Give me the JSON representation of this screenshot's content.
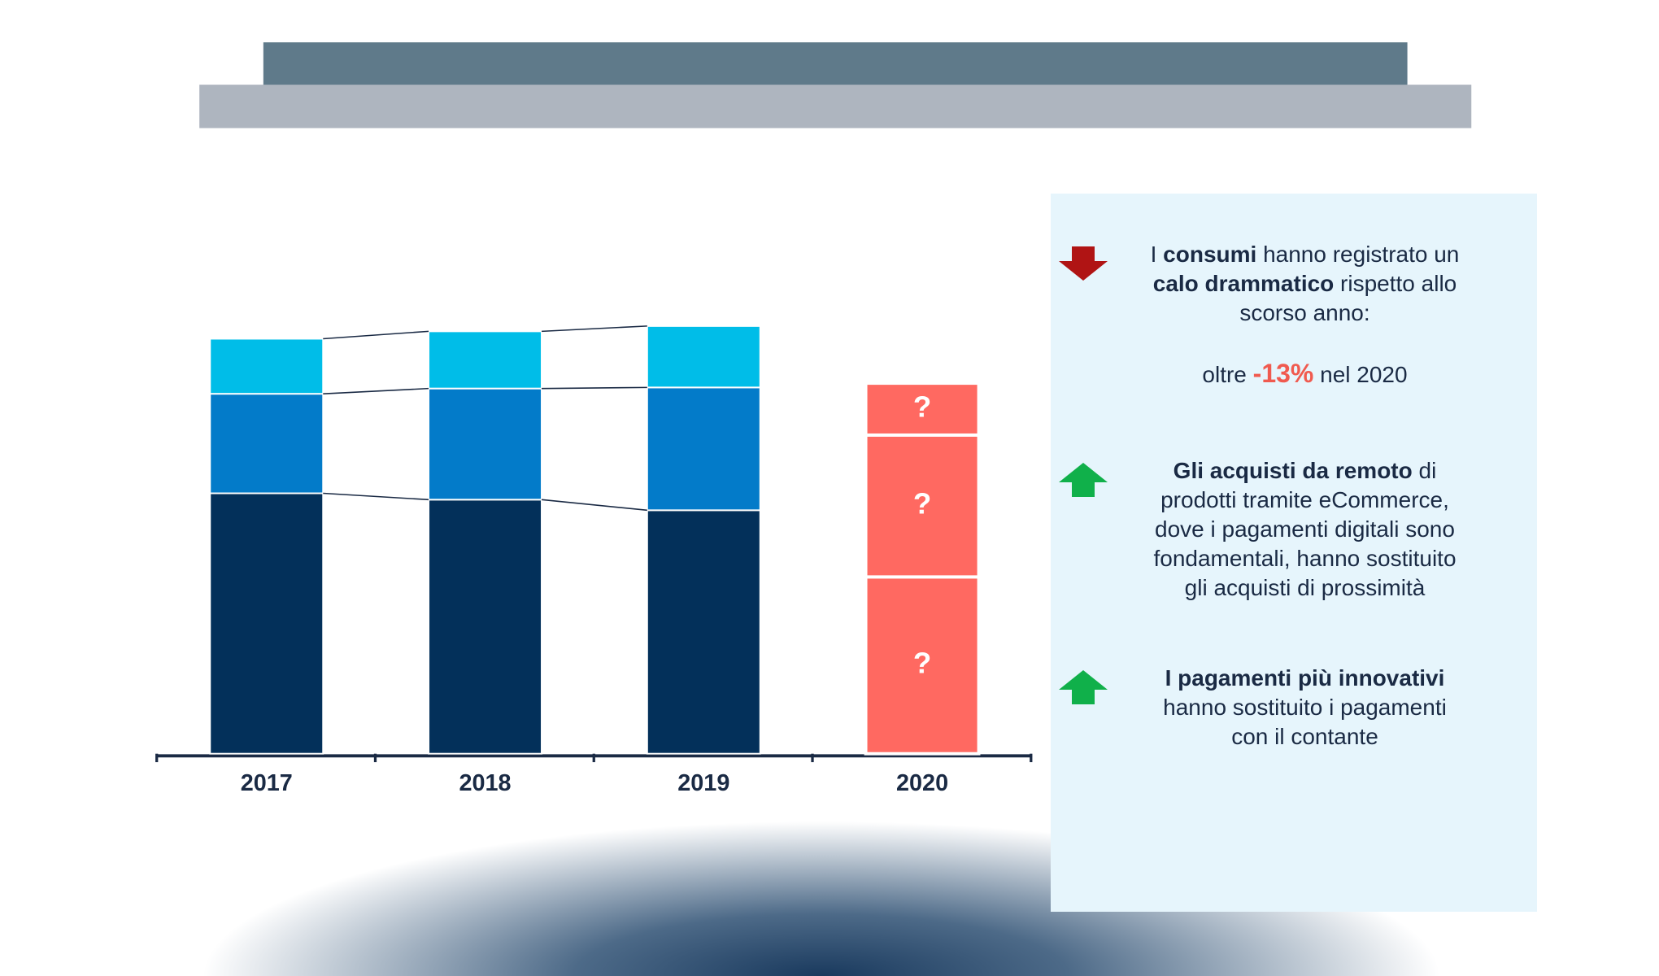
{
  "chart_data": {
    "type": "stacked-bar",
    "categories": [
      "2017",
      "2018",
      "2019",
      "2020"
    ],
    "series": [
      {
        "color": "#03305a",
        "values": [
          246,
          240,
          230,
          null
        ]
      },
      {
        "color": "#037bc9",
        "values": [
          94,
          105,
          116,
          null
        ]
      },
      {
        "color": "#00bde8",
        "values": [
          52,
          54,
          58,
          null
        ]
      }
    ],
    "estimate": {
      "color": "#ff6961",
      "values": [
        167,
        134,
        49
      ],
      "value_labels": [
        "?",
        "?",
        "?"
      ]
    }
  },
  "panel": {
    "items": [
      {
        "arrow": "down",
        "lines": [
          [
            {
              "text": "I "
            },
            {
              "text": "consumi",
              "style": "bold"
            },
            {
              "text": " hanno registrato un"
            }
          ],
          [
            {
              "text": "calo drammatico",
              "style": "bold"
            },
            {
              "text": " rispetto allo"
            }
          ],
          [
            {
              "text": "scorso anno:"
            }
          ]
        ]
      },
      {
        "lines": [
          [
            {
              "text": "oltre "
            },
            {
              "text": "-13%",
              "style": "highlight"
            },
            {
              "text": " nel 2020"
            }
          ]
        ]
      },
      {
        "arrow": "up",
        "lines": [
          [
            {
              "text": "Gli acquisti da remoto",
              "style": "bold"
            },
            {
              "text": " di"
            }
          ],
          [
            {
              "text": "prodotti tramite eCommerce,"
            }
          ],
          [
            {
              "text": "dove i pagamenti digitali sono"
            }
          ],
          [
            {
              "text": "fondamentali, hanno sostituito"
            }
          ],
          [
            {
              "text": "gli acquisti di prossimità"
            }
          ]
        ]
      },
      {
        "arrow": "up",
        "lines": [
          [
            {
              "text": "I pagamenti più innovativi",
              "style": "bold"
            }
          ],
          [
            {
              "text": "hanno sostituito i pagamenti"
            }
          ],
          [
            {
              "text": "con il contante"
            }
          ]
        ]
      }
    ]
  }
}
